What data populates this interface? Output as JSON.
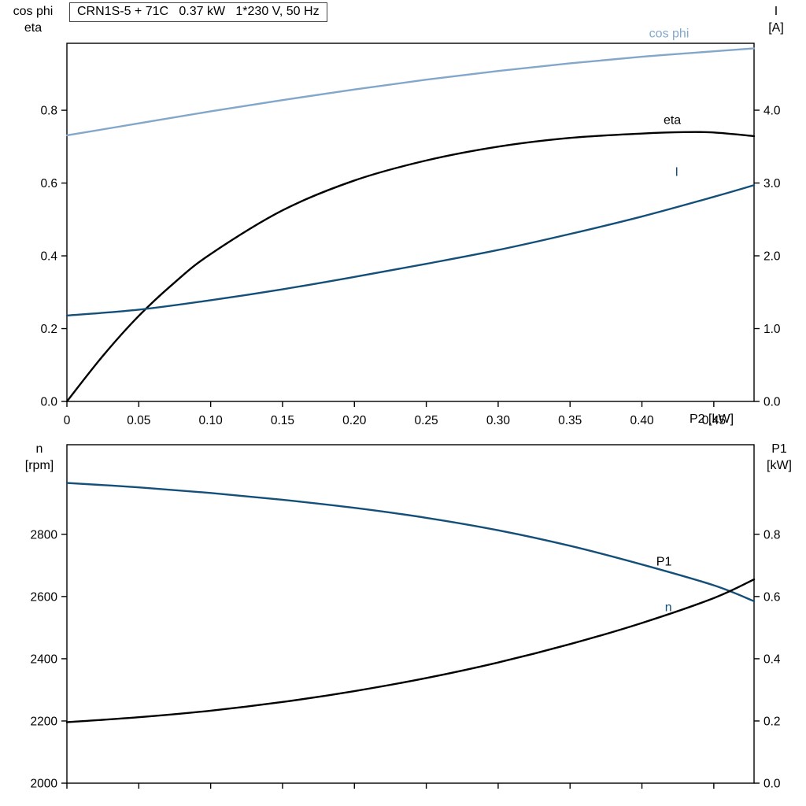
{
  "header": {
    "title_box": "CRN1S-5 + 71C   0.37 kW   1*230 V, 50 Hz"
  },
  "axis_corner_labels": {
    "top_left_line1": "cos phi",
    "top_left_line2": "eta",
    "top_right_line1": "I",
    "top_right_line2": "[A]",
    "bottom_left_line1": "n",
    "bottom_left_line2": "[rpm]",
    "bottom_right_line1": "P1",
    "bottom_right_line2": "[kW]",
    "x_axis_label": "P2 [kW]"
  },
  "colors": {
    "light_blue": "#83a7cb",
    "dark_blue": "#134f78",
    "black": "#000000",
    "frame": "#000000"
  },
  "chart_data": [
    {
      "type": "line",
      "title": "CRN1S-5 + 71C   0.37 kW   1*230 V, 50 Hz",
      "xlabel": "P2 [kW]",
      "ylabel_left": "cos phi / eta",
      "ylabel_right": "I [A]",
      "xlim": [
        0,
        0.478
      ],
      "ylim_left": [
        0,
        0.984
      ],
      "ylim_right": [
        0,
        4.919
      ],
      "grid": false,
      "x_ticks": [
        0,
        0.05,
        0.1,
        0.15,
        0.2,
        0.25,
        0.3,
        0.35,
        0.4,
        0.45
      ],
      "x_tick_labels": [
        "0",
        "0.05",
        "0.10",
        "0.15",
        "0.20",
        "0.25",
        "0.30",
        "0.35",
        "0.40",
        "0.45"
      ],
      "y_ticks_left": [
        0,
        0.2,
        0.4,
        0.6,
        0.8
      ],
      "y_tick_labels_left": [
        "0.0",
        "0.2",
        "0.4",
        "0.6",
        "0.8"
      ],
      "y_ticks_right": [
        0,
        1,
        2,
        3,
        4
      ],
      "y_tick_labels_right": [
        "0.0",
        "1.0",
        "2.0",
        "3.0",
        "4.0"
      ],
      "series": [
        {
          "name": "cos phi",
          "axis": "left",
          "color": "#83a7cb",
          "label_at": [
            0.405,
            1.0
          ],
          "x": [
            0,
            0.05,
            0.1,
            0.15,
            0.2,
            0.25,
            0.3,
            0.35,
            0.4,
            0.45,
            0.478
          ],
          "y": [
            0.731,
            0.764,
            0.797,
            0.828,
            0.857,
            0.884,
            0.908,
            0.929,
            0.947,
            0.962,
            0.97
          ]
        },
        {
          "name": "eta",
          "axis": "left",
          "color": "#000000",
          "label_at": [
            0.415,
            0.762
          ],
          "x": [
            0,
            0.025,
            0.05,
            0.075,
            0.1,
            0.15,
            0.2,
            0.25,
            0.3,
            0.35,
            0.4,
            0.43,
            0.45,
            0.478
          ],
          "y": [
            0,
            0.125,
            0.235,
            0.327,
            0.405,
            0.525,
            0.607,
            0.662,
            0.7,
            0.724,
            0.736,
            0.74,
            0.739,
            0.729
          ]
        },
        {
          "name": "I",
          "axis": "right",
          "color": "#134f78",
          "label_at": [
            0.423,
            3.1
          ],
          "x": [
            0,
            0.05,
            0.1,
            0.15,
            0.2,
            0.25,
            0.3,
            0.35,
            0.4,
            0.45,
            0.478
          ],
          "y": [
            1.18,
            1.26,
            1.39,
            1.54,
            1.71,
            1.89,
            2.08,
            2.3,
            2.54,
            2.81,
            2.97
          ]
        }
      ]
    },
    {
      "type": "line",
      "title": "",
      "xlabel": "P2 [kW]",
      "ylabel_left": "n [rpm]",
      "ylabel_right": "P1 [kW]",
      "xlim": [
        0,
        0.478
      ],
      "ylim_left": [
        2000,
        3088
      ],
      "ylim_right": [
        0,
        1.088
      ],
      "grid": false,
      "x_ticks": [
        0,
        0.05,
        0.1,
        0.15,
        0.2,
        0.25,
        0.3,
        0.35,
        0.4,
        0.45
      ],
      "x_tick_labels": null,
      "y_ticks_left": [
        2000,
        2200,
        2400,
        2600,
        2800
      ],
      "y_tick_labels_left": [
        "2000",
        "2200",
        "2400",
        "2600",
        "2800"
      ],
      "y_ticks_right": [
        0,
        0.2,
        0.4,
        0.6,
        0.8
      ],
      "y_tick_labels_right": [
        "0.0",
        "0.2",
        "0.4",
        "0.6",
        "0.8"
      ],
      "series": [
        {
          "name": "n",
          "axis": "left",
          "color": "#134f78",
          "label_at": [
            0.416,
            2553
          ],
          "x": [
            0,
            0.05,
            0.1,
            0.15,
            0.2,
            0.25,
            0.3,
            0.35,
            0.4,
            0.45,
            0.478
          ],
          "y": [
            2965,
            2951,
            2933,
            2911,
            2885,
            2853,
            2813,
            2763,
            2703,
            2636,
            2585
          ]
        },
        {
          "name": "P1",
          "axis": "right",
          "color": "#000000",
          "label_at": [
            0.41,
            0.7
          ],
          "x": [
            0,
            0.05,
            0.1,
            0.15,
            0.2,
            0.25,
            0.3,
            0.35,
            0.4,
            0.45,
            0.478
          ],
          "y": [
            0.196,
            0.212,
            0.233,
            0.261,
            0.296,
            0.338,
            0.388,
            0.447,
            0.515,
            0.595,
            0.655
          ]
        }
      ]
    }
  ]
}
